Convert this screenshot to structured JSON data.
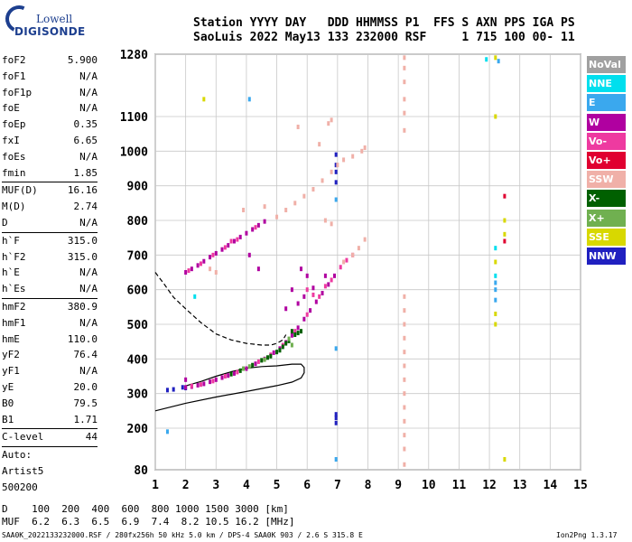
{
  "logo": {
    "line1": "Lowell",
    "line2": "DIGISONDE"
  },
  "header": {
    "labels": "Station YYYY DAY   DDD HHMMSS P1  FFS S AXN PPS IGA PS",
    "values": "SaoLuis 2022 May13 133 232000 RSF     1 715 100 00- 11"
  },
  "params": [
    {
      "name": "foF2",
      "value": "5.900"
    },
    {
      "name": "foF1",
      "value": "N/A"
    },
    {
      "name": "foF1p",
      "value": "N/A"
    },
    {
      "name": "foE",
      "value": "N/A"
    },
    {
      "name": "foEp",
      "value": "0.35"
    },
    {
      "name": "fxI",
      "value": "6.65"
    },
    {
      "name": "foEs",
      "value": "N/A"
    },
    {
      "name": "fmin",
      "value": "1.85"
    },
    {
      "name": "MUF(D)",
      "value": "16.16"
    },
    {
      "name": "M(D)",
      "value": "2.74"
    },
    {
      "name": "D",
      "value": "N/A"
    },
    {
      "name": "h`F",
      "value": "315.0"
    },
    {
      "name": "h`F2",
      "value": "315.0"
    },
    {
      "name": "h`E",
      "value": "N/A"
    },
    {
      "name": "h`Es",
      "value": "N/A"
    },
    {
      "name": "hmF2",
      "value": "380.9"
    },
    {
      "name": "hmF1",
      "value": "N/A"
    },
    {
      "name": "hmE",
      "value": "110.0"
    },
    {
      "name": "yF2",
      "value": "76.4"
    },
    {
      "name": "yF1",
      "value": "N/A"
    },
    {
      "name": "yE",
      "value": "20.0"
    },
    {
      "name": "B0",
      "value": "79.5"
    },
    {
      "name": "B1",
      "value": "1.71"
    },
    {
      "name": "C-level",
      "value": "44"
    }
  ],
  "auto": {
    "line1": "Auto:",
    "line2": "Artist5",
    "line3": "500200"
  },
  "legend": [
    {
      "label": "NoVal",
      "color": "#a0a0a0"
    },
    {
      "label": "NNE",
      "color": "#00dfee"
    },
    {
      "label": "E",
      "color": "#3aa8ee"
    },
    {
      "label": "W",
      "color": "#b000a0"
    },
    {
      "label": "Vo-",
      "color": "#ee3aa0"
    },
    {
      "label": "Vo+",
      "color": "#e00030"
    },
    {
      "label": "SSW",
      "color": "#f0b0a8"
    },
    {
      "label": "X-",
      "color": "#006000"
    },
    {
      "label": "X+",
      "color": "#70b050"
    },
    {
      "label": "SSE",
      "color": "#d8d800"
    },
    {
      "label": "NNW",
      "color": "#2020c0"
    }
  ],
  "muf_table": {
    "row1": "D    100  200  400  600  800 1000 1500 3000 [km]",
    "row2": "MUF  6.2  6.3  6.5  6.9  7.4  8.2 10.5 16.2 [MHz]"
  },
  "footer": {
    "left": "SAA0K_2022133232000.RSF / 280fx256h 50 kHz 5.0 km / DPS-4 SAA0K 903 / 2.6 S 315.8 E",
    "right": "Ion2Png 1.3.17"
  },
  "chart_data": {
    "type": "scatter",
    "xlim": [
      1,
      15
    ],
    "ylim": [
      80,
      1280
    ],
    "x_ticks": [
      1,
      2,
      3,
      4,
      5,
      6,
      7,
      8,
      9,
      10,
      11,
      12,
      13,
      14,
      15
    ],
    "y_ticks": [
      80,
      200,
      300,
      400,
      500,
      600,
      700,
      800,
      900,
      1000,
      1100,
      1280
    ],
    "grid": true,
    "series": [
      {
        "color": "#2020c0",
        "points": [
          [
            1.4,
            310
          ],
          [
            1.6,
            312
          ],
          [
            1.9,
            318
          ],
          [
            2.0,
            316
          ],
          [
            6.95,
            960
          ],
          [
            6.95,
            990
          ],
          [
            6.95,
            940
          ],
          [
            6.95,
            910
          ],
          [
            6.95,
            240
          ],
          [
            6.95,
            230
          ],
          [
            6.95,
            215
          ]
        ]
      },
      {
        "color": "#b000a0",
        "points": [
          [
            2.0,
            318
          ],
          [
            2.2,
            320
          ],
          [
            2.4,
            324
          ],
          [
            2.6,
            328
          ],
          [
            2.8,
            334
          ],
          [
            3.0,
            340
          ],
          [
            3.2,
            346
          ],
          [
            3.4,
            352
          ],
          [
            3.6,
            358
          ],
          [
            4.0,
            372
          ],
          [
            4.3,
            386
          ],
          [
            4.6,
            400
          ],
          [
            4.9,
            418
          ],
          [
            5.1,
            430
          ],
          [
            5.3,
            448
          ],
          [
            5.5,
            468
          ],
          [
            5.7,
            490
          ],
          [
            5.9,
            515
          ],
          [
            6.1,
            540
          ],
          [
            6.3,
            565
          ],
          [
            6.5,
            590
          ],
          [
            6.7,
            615
          ],
          [
            6.9,
            640
          ],
          [
            2.0,
            650
          ],
          [
            2.2,
            660
          ],
          [
            2.4,
            670
          ],
          [
            2.6,
            682
          ],
          [
            2.8,
            694
          ],
          [
            3.0,
            705
          ],
          [
            3.2,
            716
          ],
          [
            3.4,
            728
          ],
          [
            3.6,
            740
          ],
          [
            3.8,
            752
          ],
          [
            4.0,
            763
          ],
          [
            4.2,
            774
          ],
          [
            4.4,
            786
          ],
          [
            4.6,
            797
          ],
          [
            2.0,
            340
          ],
          [
            4.1,
            700
          ],
          [
            4.4,
            660
          ],
          [
            5.5,
            600
          ],
          [
            5.8,
            660
          ],
          [
            6.0,
            640
          ],
          [
            5.3,
            545
          ],
          [
            5.7,
            560
          ],
          [
            5.9,
            580
          ],
          [
            6.2,
            605
          ],
          [
            6.6,
            640
          ]
        ]
      },
      {
        "color": "#ee3aa0",
        "points": [
          [
            2.2,
            322
          ],
          [
            2.5,
            326
          ],
          [
            2.9,
            336
          ],
          [
            3.3,
            350
          ],
          [
            3.7,
            362
          ],
          [
            4.4,
            392
          ],
          [
            4.8,
            412
          ],
          [
            5.2,
            440
          ],
          [
            5.6,
            480
          ],
          [
            6.0,
            528
          ],
          [
            6.4,
            580
          ],
          [
            6.8,
            628
          ],
          [
            7.1,
            665
          ],
          [
            7.3,
            685
          ],
          [
            7.5,
            700
          ],
          [
            2.1,
            655
          ],
          [
            2.5,
            675
          ],
          [
            2.9,
            700
          ],
          [
            3.3,
            722
          ],
          [
            3.7,
            745
          ],
          [
            4.3,
            780
          ],
          [
            3.5,
            740
          ],
          [
            6.0,
            600
          ],
          [
            6.2,
            585
          ],
          [
            6.6,
            610
          ]
        ]
      },
      {
        "color": "#006000",
        "points": [
          [
            3.5,
            356
          ],
          [
            3.8,
            366
          ],
          [
            4.2,
            382
          ],
          [
            4.5,
            396
          ],
          [
            4.8,
            408
          ],
          [
            5.0,
            420
          ],
          [
            5.2,
            435
          ],
          [
            5.4,
            452
          ],
          [
            5.6,
            470
          ],
          [
            5.7,
            475
          ],
          [
            5.8,
            480
          ],
          [
            5.5,
            480
          ],
          [
            5.3,
            445
          ],
          [
            5.1,
            425
          ],
          [
            4.7,
            404
          ]
        ]
      },
      {
        "color": "#70b050",
        "points": [
          [
            3.9,
            372
          ],
          [
            4.1,
            378
          ],
          [
            4.6,
            398
          ],
          [
            5.4,
            458
          ],
          [
            5.5,
            440
          ]
        ]
      },
      {
        "color": "#f0b0a8",
        "points": [
          [
            5.0,
            810
          ],
          [
            5.3,
            830
          ],
          [
            5.6,
            850
          ],
          [
            5.9,
            870
          ],
          [
            6.2,
            890
          ],
          [
            6.5,
            915
          ],
          [
            6.8,
            940
          ],
          [
            7.0,
            960
          ],
          [
            7.2,
            975
          ],
          [
            7.5,
            985
          ],
          [
            7.8,
            1000
          ],
          [
            7.9,
            1010
          ],
          [
            6.6,
            800
          ],
          [
            6.8,
            790
          ],
          [
            7.2,
            680
          ],
          [
            7.5,
            700
          ],
          [
            7.7,
            720
          ],
          [
            7.9,
            745
          ],
          [
            3.0,
            650
          ],
          [
            2.8,
            660
          ],
          [
            3.9,
            830
          ],
          [
            4.6,
            840
          ],
          [
            5.7,
            1070
          ],
          [
            6.7,
            1080
          ],
          [
            6.8,
            1090
          ],
          [
            6.4,
            1020
          ],
          [
            9.2,
            1270
          ],
          [
            9.2,
            1240
          ],
          [
            9.2,
            1200
          ],
          [
            9.2,
            1150
          ],
          [
            9.2,
            1110
          ],
          [
            9.2,
            1060
          ],
          [
            9.2,
            580
          ],
          [
            9.2,
            540
          ],
          [
            9.2,
            500
          ],
          [
            9.2,
            460
          ],
          [
            9.2,
            420
          ],
          [
            9.2,
            380
          ],
          [
            9.2,
            340
          ],
          [
            9.2,
            300
          ],
          [
            9.2,
            260
          ],
          [
            9.2,
            220
          ],
          [
            9.2,
            180
          ],
          [
            9.2,
            140
          ],
          [
            9.2,
            95
          ]
        ]
      },
      {
        "color": "#3aa8ee",
        "points": [
          [
            12.2,
            600
          ],
          [
            12.2,
            570
          ],
          [
            12.2,
            620
          ],
          [
            12.3,
            1260
          ],
          [
            6.95,
            860
          ],
          [
            6.95,
            430
          ],
          [
            6.95,
            110
          ],
          [
            4.1,
            1150
          ],
          [
            1.4,
            190
          ]
        ]
      },
      {
        "color": "#00dfee",
        "points": [
          [
            12.2,
            640
          ],
          [
            12.2,
            720
          ],
          [
            11.9,
            1265
          ],
          [
            2.3,
            580
          ]
        ]
      },
      {
        "color": "#d8d800",
        "points": [
          [
            12.2,
            1270
          ],
          [
            12.2,
            680
          ],
          [
            12.2,
            530
          ],
          [
            12.2,
            500
          ],
          [
            12.2,
            1100
          ],
          [
            12.5,
            800
          ],
          [
            12.5,
            110
          ],
          [
            2.6,
            1150
          ],
          [
            12.5,
            760
          ]
        ]
      },
      {
        "color": "#e00030",
        "points": [
          [
            12.5,
            870
          ],
          [
            12.5,
            740
          ]
        ]
      }
    ],
    "profile_solid": [
      [
        1.0,
        250
      ],
      [
        2.0,
        272
      ],
      [
        3.0,
        290
      ],
      [
        4.0,
        306
      ],
      [
        5.0,
        323
      ],
      [
        5.5,
        333
      ],
      [
        5.8,
        345
      ],
      [
        5.9,
        360
      ],
      [
        5.9,
        375
      ],
      [
        5.8,
        385
      ],
      [
        5.5,
        385
      ],
      [
        5.0,
        380
      ],
      [
        4.5,
        378
      ],
      [
        4.0,
        373
      ],
      [
        3.5,
        363
      ],
      [
        3.0,
        350
      ],
      [
        2.5,
        335
      ],
      [
        2.0,
        322
      ]
    ],
    "profile_dashed": [
      [
        1.0,
        650
      ],
      [
        1.3,
        615
      ],
      [
        1.6,
        578
      ],
      [
        2.0,
        545
      ],
      [
        2.5,
        505
      ],
      [
        3.0,
        472
      ],
      [
        3.5,
        455
      ],
      [
        4.0,
        445
      ],
      [
        4.5,
        440
      ],
      [
        4.8,
        440
      ],
      [
        5.0,
        445
      ],
      [
        5.2,
        455
      ],
      [
        5.3,
        470
      ]
    ]
  }
}
